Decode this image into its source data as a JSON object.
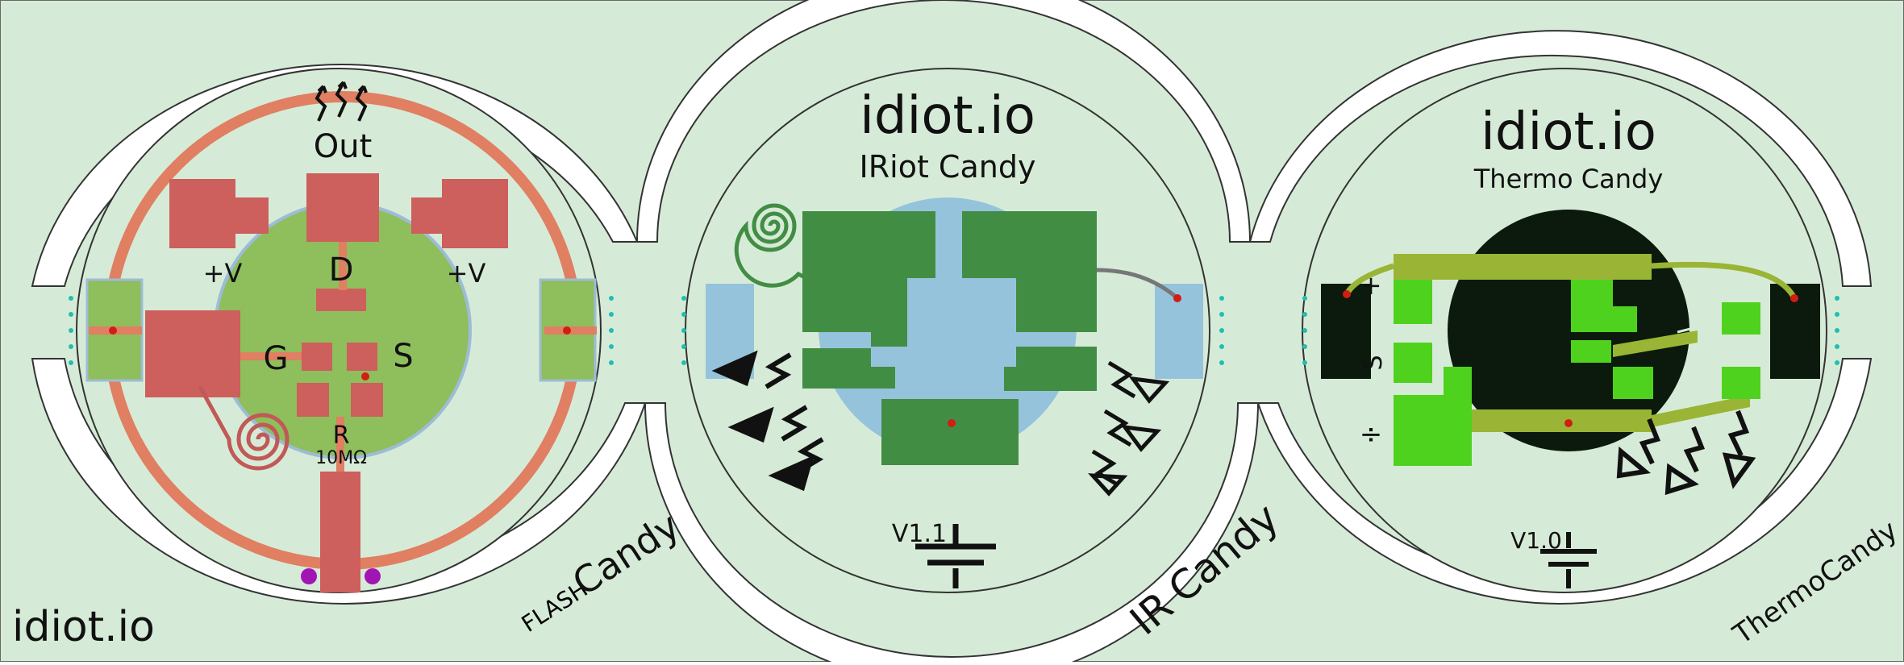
{
  "brand": "idiot.io",
  "boards": [
    {
      "id": "flash",
      "side_label_prefix": "FLASH",
      "side_label_main": "Candy",
      "labels": {
        "out": "Out",
        "vplus_left": "+V",
        "vplus_right": "+V",
        "drain": "D",
        "gate": "G",
        "source": "S",
        "resistor": "R",
        "resistor_value": "10MΩ"
      }
    },
    {
      "id": "ir",
      "brand": "idiot.io",
      "subtitle": "IRiot Candy",
      "version": "V1.1",
      "side_label_prefix": "IR",
      "side_label_main": "Candy"
    },
    {
      "id": "thermo",
      "brand": "idiot.io",
      "subtitle": "Thermo Candy",
      "version": "V1.0",
      "pin_labels": [
        "+",
        "S",
        "÷"
      ],
      "side_label_main": "ThermoCandy"
    }
  ],
  "colors": {
    "background": "#d6ebd7",
    "pad_red": "#cd5f5c",
    "ring_orange": "#e07f62",
    "led_green": "#8fbe5c",
    "pcb_green": "#428d44",
    "ir_blue": "#96c3dc",
    "thermo_lime": "#4ed21d",
    "thermo_olive": "#9ab535",
    "thermo_black": "#0b1a0c",
    "via_red": "#d21d12",
    "dot_purple": "#a314b5",
    "dot_teal": "#1fbfb0"
  }
}
